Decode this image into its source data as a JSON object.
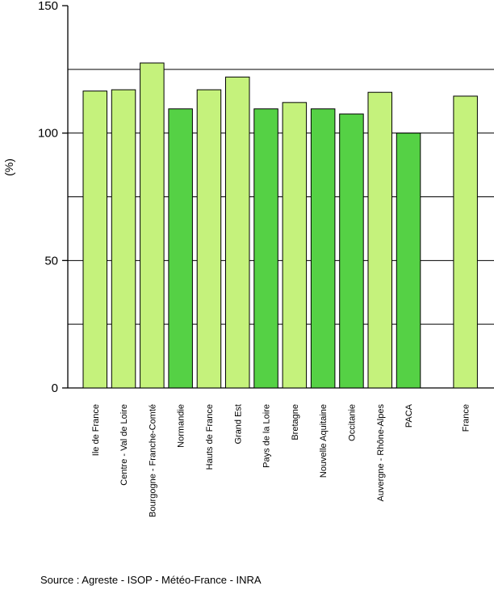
{
  "chart_data": {
    "type": "bar",
    "ylabel": "(%)",
    "ylim": [
      0,
      150
    ],
    "yticks": [
      0,
      50,
      100,
      150
    ],
    "gridlines": [
      25,
      50,
      75,
      100,
      125
    ],
    "grid": true,
    "categories": [
      "Ile de France",
      "Centre - Val de Loire",
      "Bourgogne - Franche-Comté",
      "Normandie",
      "Hauts de France",
      "Grand Est",
      "Pays de la Loire",
      "Bretagne",
      "Nouvelle Aquitaine",
      "Occitanie",
      "Auvergne - Rhône-Alpes",
      "PACA",
      "France"
    ],
    "values": [
      116.5,
      117,
      127.5,
      109.5,
      117,
      122,
      109.5,
      112,
      109.5,
      107.5,
      116,
      100,
      114.5
    ],
    "bar_colors": [
      "#c5f27c",
      "#c5f27c",
      "#c5f27c",
      "#55d145",
      "#c5f27c",
      "#c5f27c",
      "#55d145",
      "#c5f27c",
      "#55d145",
      "#55d145",
      "#c5f27c",
      "#55d145",
      "#c5f27c"
    ]
  },
  "source": "Source : Agreste - ISOP - Météo-France - INRA"
}
